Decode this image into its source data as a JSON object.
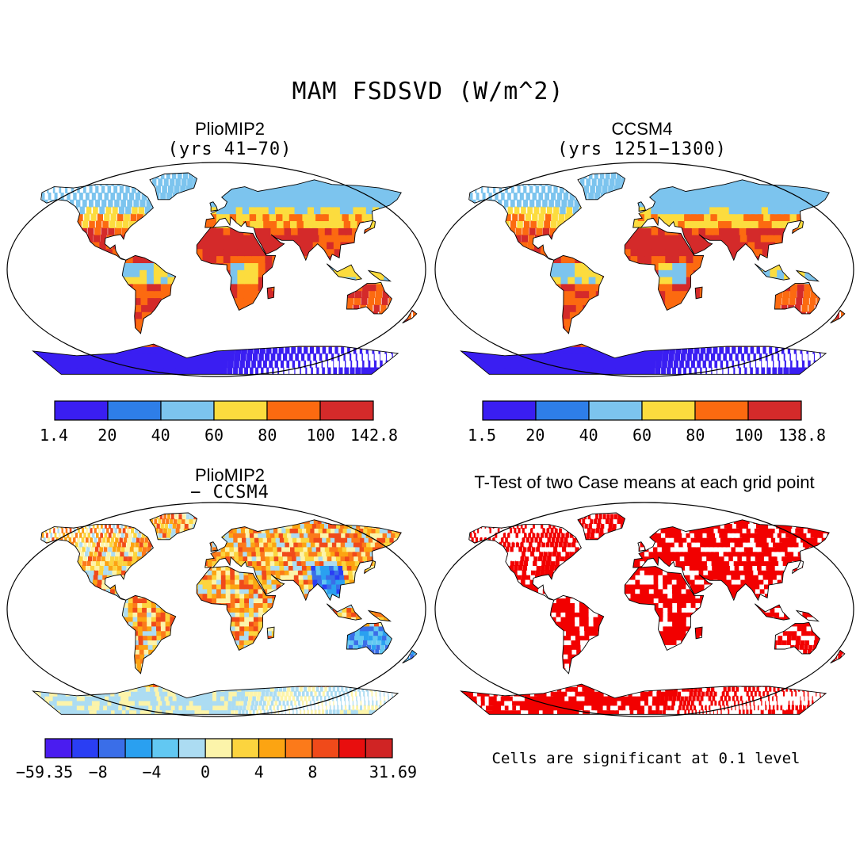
{
  "figure": {
    "main_title": "MAM FSDSVD (W/m^2)"
  },
  "panels": [
    {
      "title": "PlioMIP2",
      "subtitle": "(yrs 41−70)",
      "colormap": "absolute",
      "colorbar": {
        "colors": [
          "#3a1ef2",
          "#2e7ee8",
          "#7cc4ee",
          "#fcdc3e",
          "#fc6a10",
          "#d42a2a"
        ],
        "labels": [
          "1.4",
          "20",
          "40",
          "60",
          "80",
          "100",
          "142.8"
        ]
      }
    },
    {
      "title": "CCSM4",
      "subtitle": "(yrs 1251−1300)",
      "colormap": "absolute",
      "colorbar": {
        "colors": [
          "#3a1ef2",
          "#2e7ee8",
          "#7cc4ee",
          "#fcdc3e",
          "#fc6a10",
          "#d42a2a"
        ],
        "labels": [
          "1.5",
          "20",
          "40",
          "60",
          "80",
          "100",
          "138.8"
        ]
      }
    },
    {
      "title": "PlioMIP2",
      "subtitle": "− CCSM4",
      "colormap": "difference",
      "colorbar": {
        "colors": [
          "#4a1cf0",
          "#2a3ef4",
          "#3a6ee8",
          "#2aa0f0",
          "#62c8f2",
          "#acdcf2",
          "#fcf4aa",
          "#fcd43e",
          "#fca412",
          "#fc7a1a",
          "#f04a1a",
          "#e80e0e",
          "#d02424"
        ],
        "labels": [
          "−59.35",
          "−8",
          "−4",
          "0",
          "4",
          "8",
          "31.69"
        ]
      }
    },
    {
      "title": "T-Test of two Case means at each grid point",
      "subtitle": "",
      "colormap": "significance",
      "note": "Cells are significant at 0.1 level"
    }
  ],
  "palette": {
    "significance_red": "#f20000",
    "map_outline": "#000000"
  }
}
